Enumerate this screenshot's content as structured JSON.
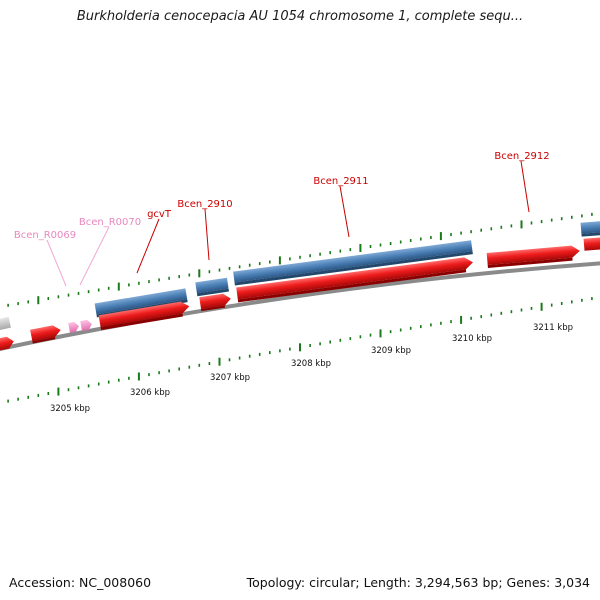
{
  "title": "Burkholderia cenocepacia AU 1054 chromosome 1, complete sequ...",
  "footer": {
    "accession": "Accession: NC_008060",
    "summary": "Topology: circular; Length: 3,294,563 bp; Genes: 3,034"
  },
  "colors": {
    "forward_gene": "#ee1c1c",
    "cds_bar": "#4a7fb5",
    "rna_gene": "#f08cc8",
    "backbone": "#8a8a8a",
    "tick": "#1a7a1a",
    "gene_label": "#cc0000",
    "rna_label": "#e888c0"
  },
  "scale": {
    "ticks": [
      "3205 kbp",
      "3206 kbp",
      "3207 kbp",
      "3208 kbp",
      "3209 kbp",
      "3210 kbp",
      "3211 kbp"
    ]
  },
  "gene_labels": [
    "Bcen_R0069",
    "Bcen_R0070",
    "gcvT",
    "Bcen_2910",
    "Bcen_2911",
    "Bcen_2912"
  ]
}
